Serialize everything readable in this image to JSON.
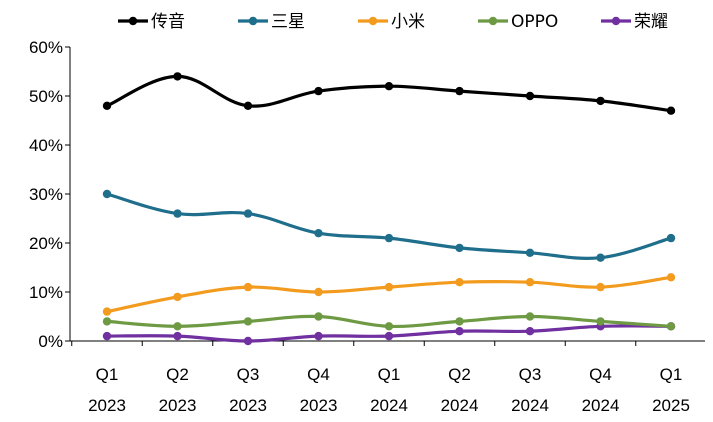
{
  "chart_data": {
    "type": "line",
    "title": "",
    "xlabel": "",
    "ylabel": "",
    "categories": [
      [
        "Q1",
        "2023"
      ],
      [
        "Q2",
        "2023"
      ],
      [
        "Q3",
        "2023"
      ],
      [
        "Q4",
        "2023"
      ],
      [
        "Q1",
        "2024"
      ],
      [
        "Q2",
        "2024"
      ],
      [
        "Q3",
        "2024"
      ],
      [
        "Q4",
        "2024"
      ],
      [
        "Q1",
        "2025"
      ]
    ],
    "ylim": [
      0,
      60
    ],
    "yticks": [
      0,
      10,
      20,
      30,
      40,
      50,
      60
    ],
    "ytick_format": "%",
    "grid": false,
    "smooth": true,
    "legend_position": "top",
    "series": [
      {
        "name": "传音",
        "color": "#000000",
        "values": [
          48,
          54,
          48,
          51,
          52,
          51,
          50,
          49,
          47
        ]
      },
      {
        "name": "三星",
        "color": "#1F6E8C",
        "values": [
          30,
          26,
          26,
          22,
          21,
          19,
          18,
          17,
          21
        ]
      },
      {
        "name": "小米",
        "color": "#F29B1E",
        "values": [
          6,
          9,
          11,
          10,
          11,
          12,
          12,
          11,
          13
        ]
      },
      {
        "name": "OPPO",
        "color": "#6E9A44",
        "values": [
          4,
          3,
          4,
          5,
          3,
          4,
          5,
          4,
          3
        ]
      },
      {
        "name": "荣耀",
        "color": "#7030A0",
        "values": [
          1,
          1,
          0,
          1,
          1,
          2,
          2,
          3,
          3
        ]
      }
    ]
  }
}
